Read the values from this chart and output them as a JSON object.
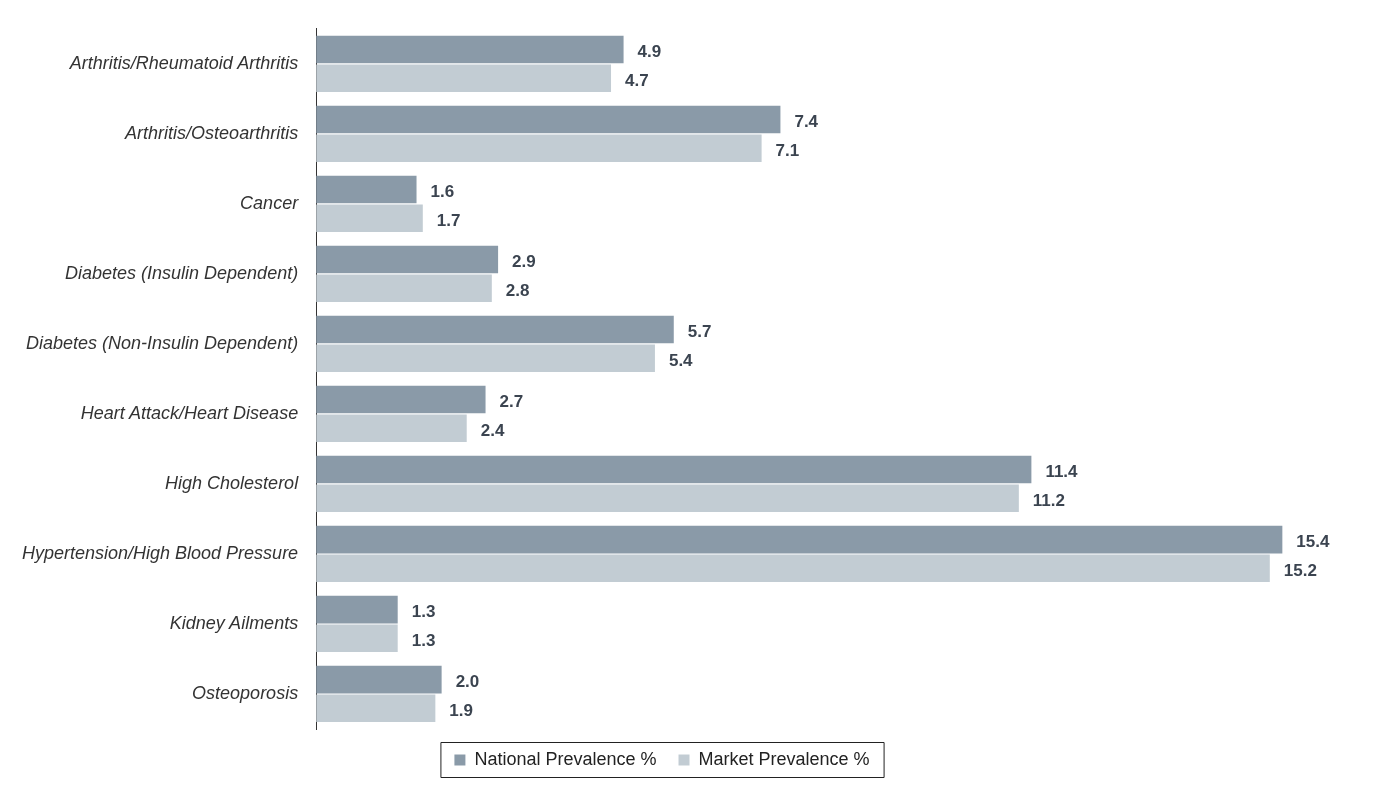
{
  "chart_data": {
    "type": "bar",
    "orientation": "horizontal",
    "categories": [
      "Arthritis/Rheumatoid Arthritis",
      "Arthritis/Osteoarthritis",
      "Cancer",
      "Diabetes (Insulin Dependent)",
      "Diabetes (Non-Insulin Dependent)",
      "Heart Attack/Heart Disease",
      "High Cholesterol",
      "Hypertension/High Blood Pressure",
      "Kidney Ailments",
      "Osteoporosis"
    ],
    "series": [
      {
        "name": "National Prevalence %",
        "color": "#8a9aa8",
        "values": [
          4.9,
          7.4,
          1.6,
          2.9,
          5.7,
          2.7,
          11.4,
          15.4,
          1.3,
          2.0
        ],
        "value_labels": [
          "4.9",
          "7.4",
          "1.6",
          "2.9",
          "5.7",
          "2.7",
          "11.4",
          "15.4",
          "1.3",
          "2.0"
        ]
      },
      {
        "name": "Market Prevalence %",
        "color": "#c2ccd3",
        "values": [
          4.7,
          7.1,
          1.7,
          2.8,
          5.4,
          2.4,
          11.2,
          15.2,
          1.3,
          1.9
        ],
        "value_labels": [
          "4.7",
          "7.1",
          "1.7",
          "2.8",
          "5.4",
          "2.4",
          "11.2",
          "15.2",
          "1.3",
          "1.9"
        ]
      }
    ],
    "legend": "bottom"
  }
}
